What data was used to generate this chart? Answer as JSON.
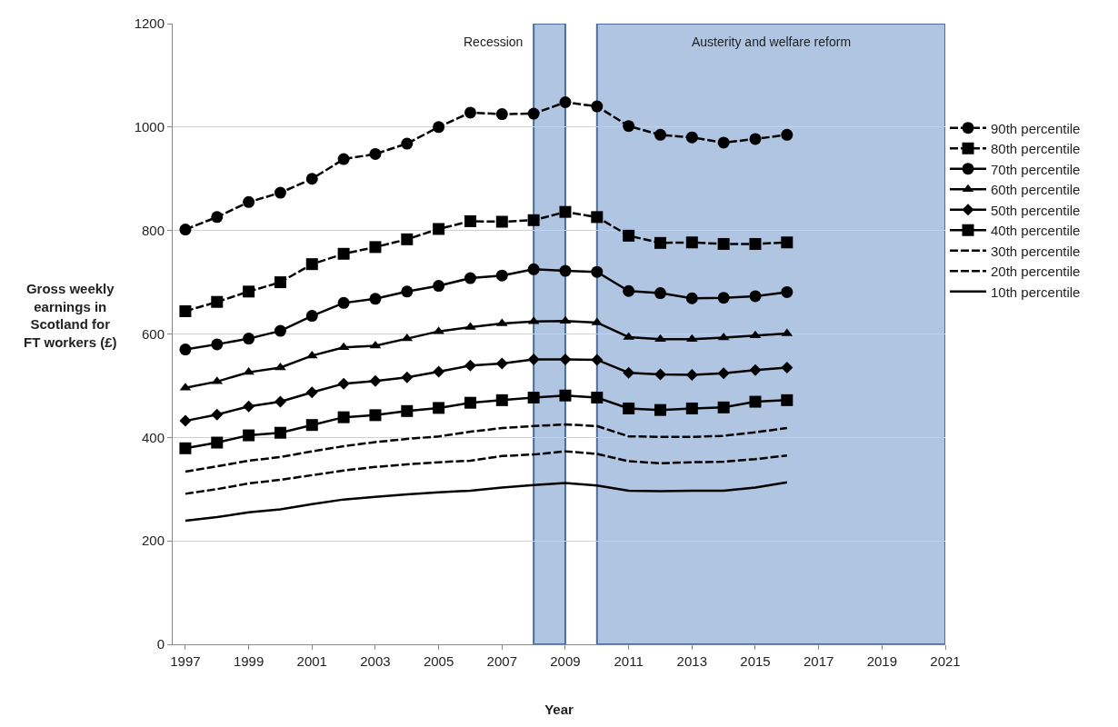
{
  "chart_data": {
    "type": "line",
    "xlabel": "Year",
    "ylabel": "Gross weekly\nearnings in\nScotland for\nFT workers (£)",
    "x": [
      1997,
      1998,
      1999,
      2000,
      2001,
      2002,
      2003,
      2004,
      2005,
      2006,
      2007,
      2008,
      2009,
      2010,
      2011,
      2012,
      2013,
      2014,
      2015,
      2016
    ],
    "series": [
      {
        "name": "90th percentile",
        "color": "#000000",
        "marker": "circle",
        "line_style": "dashed",
        "values": [
          802,
          826,
          855,
          873,
          900,
          938,
          948,
          968,
          1000,
          1028,
          1025,
          1026,
          1048,
          1040,
          1002,
          985,
          980,
          970,
          977,
          985
        ]
      },
      {
        "name": "80th percentile",
        "color": "#000000",
        "marker": "square",
        "line_style": "dashed",
        "values": [
          644,
          662,
          682,
          700,
          735,
          755,
          768,
          783,
          803,
          818,
          817,
          820,
          836,
          826,
          790,
          776,
          777,
          774,
          774,
          777
        ]
      },
      {
        "name": "70th percentile",
        "color": "#000000",
        "marker": "circle",
        "line_style": "solid",
        "values": [
          570,
          580,
          591,
          606,
          635,
          660,
          668,
          682,
          693,
          708,
          713,
          725,
          722,
          720,
          683,
          679,
          669,
          670,
          673,
          681
        ]
      },
      {
        "name": "60th percentile",
        "color": "#000000",
        "marker": "triangle",
        "line_style": "solid",
        "values": [
          496,
          508,
          526,
          535,
          558,
          574,
          577,
          591,
          605,
          613,
          620,
          624,
          625,
          622,
          594,
          590,
          590,
          593,
          597,
          601
        ]
      },
      {
        "name": "50th percentile",
        "color": "#000000",
        "marker": "diamond",
        "line_style": "solid",
        "values": [
          432,
          444,
          460,
          469,
          487,
          504,
          509,
          516,
          527,
          539,
          543,
          551,
          551,
          550,
          525,
          522,
          521,
          524,
          530,
          535
        ]
      },
      {
        "name": "40th percentile",
        "color": "#000000",
        "marker": "square",
        "line_style": "solid",
        "values": [
          379,
          390,
          404,
          409,
          424,
          439,
          443,
          451,
          457,
          467,
          472,
          477,
          481,
          477,
          456,
          453,
          456,
          458,
          469,
          472
        ]
      },
      {
        "name": "30th percentile",
        "color": "#000000",
        "marker": "none",
        "line_style": "dashed",
        "values": [
          334,
          344,
          355,
          362,
          373,
          383,
          391,
          397,
          402,
          411,
          418,
          422,
          425,
          422,
          402,
          401,
          401,
          403,
          410,
          418
        ]
      },
      {
        "name": "20th percentile",
        "color": "#000000",
        "marker": "none",
        "line_style": "dashed",
        "values": [
          291,
          300,
          311,
          318,
          327,
          336,
          343,
          348,
          352,
          355,
          364,
          367,
          373,
          368,
          354,
          350,
          352,
          353,
          358,
          365
        ]
      },
      {
        "name": "10th percentile",
        "color": "#000000",
        "marker": "none",
        "line_style": "solid",
        "values": [
          239,
          246,
          255,
          261,
          271,
          280,
          285,
          290,
          294,
          297,
          303,
          308,
          312,
          307,
          297,
          296,
          297,
          297,
          303,
          313
        ]
      }
    ],
    "bands": [
      {
        "axis": "x",
        "from": 2008,
        "to": 2009,
        "label": "Recession",
        "color": "#a7bfdf"
      },
      {
        "axis": "x",
        "from": 2010,
        "to": 2021,
        "label": "Austerity and welfare reform",
        "color": "#a7bfdf"
      }
    ],
    "xlim": [
      1996.6,
      2021
    ],
    "xticks": [
      1997,
      1999,
      2001,
      2003,
      2005,
      2007,
      2009,
      2011,
      2013,
      2015,
      2017,
      2019,
      2021
    ],
    "ylim": [
      0,
      1200
    ],
    "yticks": [
      0,
      200,
      400,
      600,
      800,
      1000,
      1200
    ],
    "grid": "y",
    "legend": "right"
  }
}
